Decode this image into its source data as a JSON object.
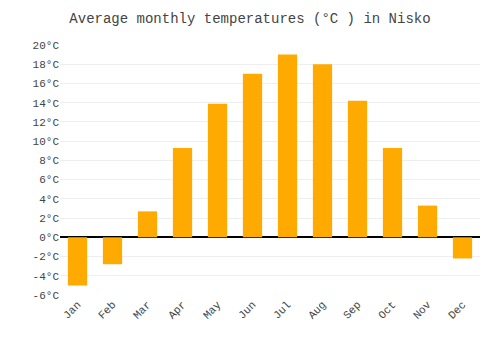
{
  "chart_data": {
    "type": "bar",
    "title": "Average monthly temperatures (°C ) in Nisko",
    "categories": [
      "Jan",
      "Feb",
      "Mar",
      "Apr",
      "May",
      "Jun",
      "Jul",
      "Aug",
      "Sep",
      "Oct",
      "Nov",
      "Dec"
    ],
    "values": [
      -5.0,
      -2.8,
      2.7,
      9.3,
      13.9,
      17.0,
      19.0,
      18.0,
      14.2,
      9.3,
      3.3,
      -2.2
    ],
    "color": "#FFAA00",
    "ylim": [
      -6,
      20
    ],
    "yticks": [
      {
        "value": -6,
        "label": "-6°C"
      },
      {
        "value": -4,
        "label": "-4°C"
      },
      {
        "value": -2,
        "label": "-2°C"
      },
      {
        "value": 0,
        "label": "0°C"
      },
      {
        "value": 2,
        "label": "2°C"
      },
      {
        "value": 4,
        "label": "4°C"
      },
      {
        "value": 6,
        "label": "6°C"
      },
      {
        "value": 8,
        "label": "8°C"
      },
      {
        "value": 10,
        "label": "10°C"
      },
      {
        "value": 12,
        "label": "12°C"
      },
      {
        "value": 14,
        "label": "14°C"
      },
      {
        "value": 16,
        "label": "16°C"
      },
      {
        "value": 18,
        "label": "18°C"
      },
      {
        "value": 20,
        "label": "20°C"
      }
    ],
    "grid": true
  }
}
